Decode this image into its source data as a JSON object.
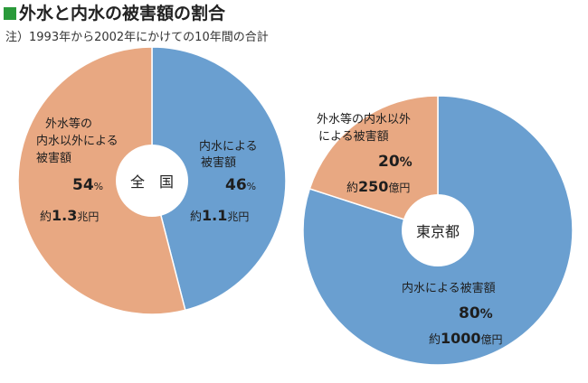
{
  "header": {
    "title": "外水と内水の被害額の割合",
    "note": "注）1993年から2002年にかけての10年間の合計"
  },
  "colors": {
    "inner": "#6a9fd0",
    "outer": "#e8a882",
    "square": "#2a9a3a"
  },
  "chart_data": [
    {
      "type": "pie",
      "center_label": "全　国",
      "slices": [
        {
          "name_lines": [
            "内水による",
            "被害額"
          ],
          "pct": 46,
          "pct_unit": "%",
          "amount_prefix": "約",
          "amount": "1.1",
          "amount_unit": "兆円",
          "color": "#6a9fd0"
        },
        {
          "name_lines": [
            "外水等の",
            "内水以外による",
            "被害額"
          ],
          "pct": 54,
          "pct_unit": "%",
          "amount_prefix": "約",
          "amount": "1.3",
          "amount_unit": "兆円",
          "color": "#e8a882"
        }
      ]
    },
    {
      "type": "pie",
      "center_label": "東京都",
      "slices": [
        {
          "name_lines": [
            "内水による被害額"
          ],
          "pct": 80,
          "pct_unit": "%",
          "amount_prefix": "約",
          "amount": "1000",
          "amount_unit": "億円",
          "color": "#6a9fd0"
        },
        {
          "name_lines": [
            "外水等の内水以外",
            "による被害額"
          ],
          "pct": 20,
          "pct_unit": "%",
          "amount_prefix": "約",
          "amount": "250",
          "amount_unit": "億円",
          "color": "#e8a882"
        }
      ]
    }
  ]
}
